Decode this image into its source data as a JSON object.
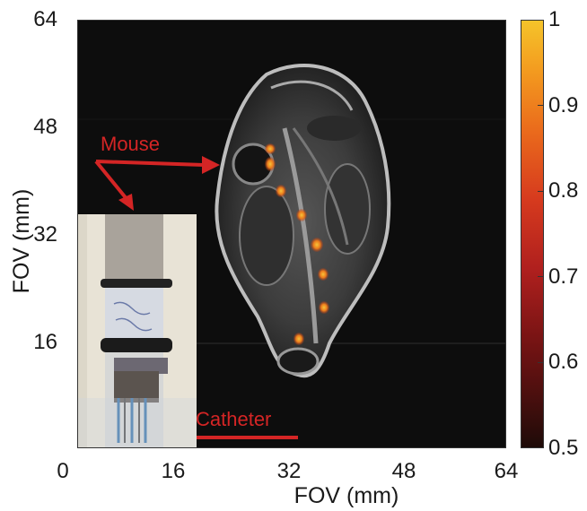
{
  "axes": {
    "xlabel": "FOV (mm)",
    "ylabel": "FOV (mm)",
    "xticks": [
      "0",
      "16",
      "32",
      "48",
      "64"
    ],
    "yticks": [
      "64",
      "48",
      "32",
      "16"
    ]
  },
  "colorbar": {
    "ticks": [
      "1",
      "0.9",
      "0.8",
      "0.7",
      "0.6",
      "0.5"
    ],
    "colormap": [
      "#1e0b08",
      "#7a1414",
      "#d63a1e",
      "#f39a1f",
      "#f5c42a"
    ]
  },
  "annotations": {
    "mouse": "Mouse",
    "catheter": "Catheter",
    "arrow_color": "#d42525"
  }
}
